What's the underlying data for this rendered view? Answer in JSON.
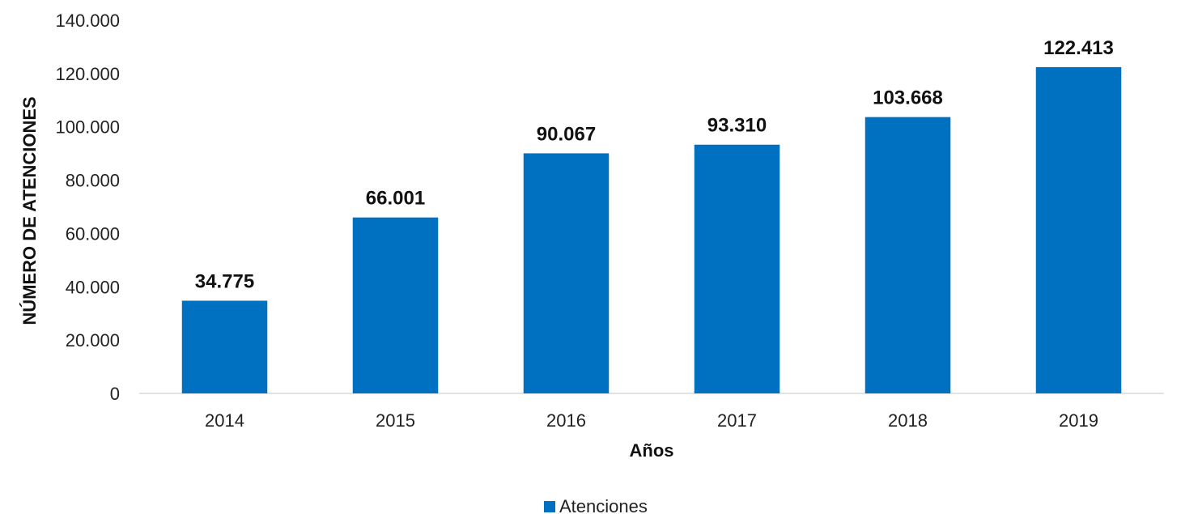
{
  "chart_data": {
    "type": "bar",
    "title": "",
    "xlabel": "Años",
    "ylabel": "NÚMERO DE ATENCIONES",
    "categories": [
      "2014",
      "2015",
      "2016",
      "2017",
      "2018",
      "2019"
    ],
    "series": [
      {
        "name": "Atenciones",
        "color": "#0070C0",
        "values": [
          34775,
          66001,
          90067,
          93310,
          103668,
          122413
        ],
        "labels": [
          "34.775",
          "66.001",
          "90.067",
          "93.310",
          "103.668",
          "122.413"
        ]
      }
    ],
    "ylim": [
      0,
      140000
    ],
    "y_ticks": [
      0,
      20000,
      40000,
      60000,
      80000,
      100000,
      120000,
      140000
    ],
    "y_tick_labels": [
      "0",
      "20.000",
      "40.000",
      "60.000",
      "80.000",
      "100.000",
      "120.000",
      "140.000"
    ],
    "grid": false,
    "legend": {
      "position": "bottom",
      "entries": [
        "Atenciones"
      ]
    }
  }
}
